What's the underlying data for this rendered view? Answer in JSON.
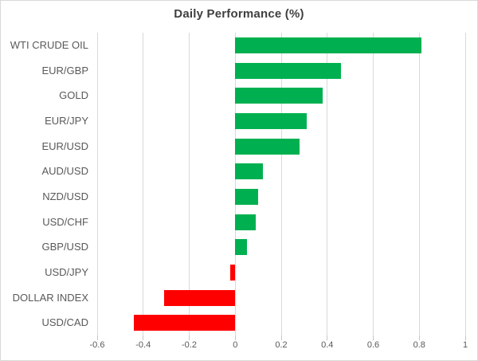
{
  "chart_data": {
    "type": "bar",
    "orientation": "horizontal",
    "title": "Daily Performance (%)",
    "categories": [
      "WTI CRUDE OIL",
      "EUR/GBP",
      "GOLD",
      "EUR/JPY",
      "EUR/USD",
      "AUD/USD",
      "NZD/USD",
      "USD/CHF",
      "GBP/USD",
      "USD/JPY",
      "DOLLAR INDEX",
      "USD/CAD"
    ],
    "values": [
      0.81,
      0.46,
      0.38,
      0.31,
      0.28,
      0.12,
      0.1,
      0.09,
      0.05,
      -0.02,
      -0.31,
      -0.44
    ],
    "xlabel": "",
    "ylabel": "",
    "xlim": [
      -0.6,
      1.0
    ],
    "x_ticks": [
      -0.6,
      -0.4,
      -0.2,
      0,
      0.2,
      0.4,
      0.6,
      0.8,
      1
    ],
    "x_tick_labels": [
      "-0.6",
      "-0.4",
      "-0.2",
      "0",
      "0.2",
      "0.4",
      "0.6",
      "0.8",
      "1"
    ],
    "grid": true,
    "legend": false,
    "positive_color": "#00B050",
    "negative_color": "#FF0000",
    "gridline_color": "#D9D9D9",
    "axis_label_color": "#595959",
    "title_color": "#3F3F3F"
  }
}
